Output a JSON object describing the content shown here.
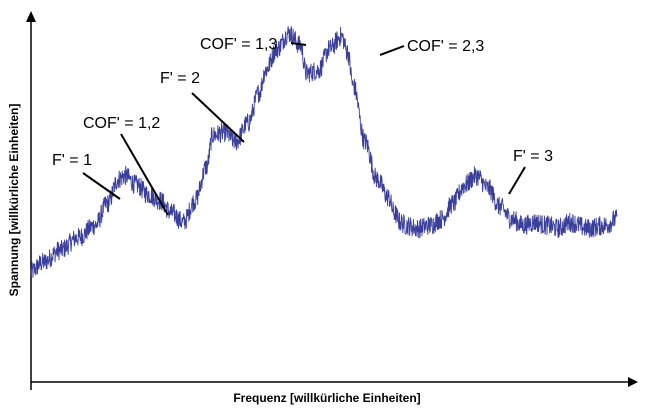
{
  "chart_data": {
    "type": "line",
    "xlabel": "Frequenz [willkürliche Einheiten]",
    "ylabel": "Spannung [willkürliche Einheiten]",
    "xlim": [
      0,
      100
    ],
    "ylim": [
      0,
      100
    ],
    "grid": false,
    "legend": "none",
    "line_color": "#3b3f9c",
    "series": [
      {
        "x": [
          0,
          2,
          5,
          8,
          11,
          13,
          15,
          16,
          18,
          20,
          22,
          24,
          26,
          28,
          30,
          31,
          33,
          35,
          37,
          39,
          40,
          42,
          44,
          46,
          47,
          49,
          51,
          53,
          54,
          55,
          57,
          59,
          61,
          62,
          63,
          64,
          66,
          68,
          70,
          72,
          74,
          76,
          78,
          80,
          82,
          84,
          86,
          88,
          90,
          92,
          95,
          98,
          100
        ],
        "y": [
          22,
          25,
          29,
          33,
          37,
          44,
          52,
          53,
          50,
          47,
          45,
          41,
          38,
          45,
          56,
          66,
          67,
          64,
          70,
          80,
          87,
          94,
          99,
          95,
          86,
          87,
          94,
          98,
          93,
          82,
          64,
          52,
          46,
          41,
          38,
          37,
          36,
          37,
          39,
          44,
          50,
          53,
          49,
          43,
          39,
          37,
          38,
          37,
          36,
          38,
          36,
          37,
          39
        ]
      }
    ],
    "annotations": [
      {
        "text": "F' = 1",
        "x": 16,
        "y": 53
      },
      {
        "text": "COF' = 1,2",
        "x": 23,
        "y": 47
      },
      {
        "text": "F' = 2",
        "x": 37,
        "y": 69
      },
      {
        "text": "COF' = 1,3",
        "x": 47,
        "y": 96
      },
      {
        "text": "COF' = 2,3",
        "x": 58,
        "y": 96
      },
      {
        "text": "F' = 3",
        "x": 80,
        "y": 57
      }
    ]
  }
}
